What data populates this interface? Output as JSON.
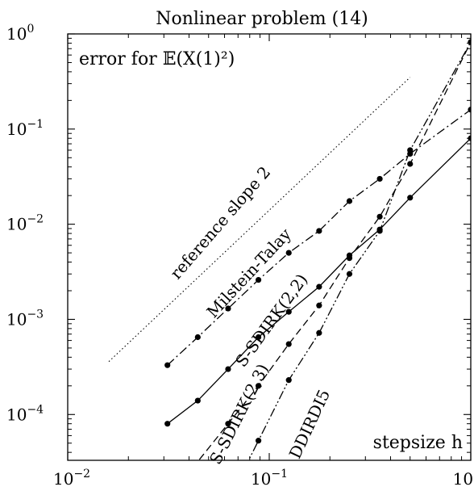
{
  "chart_data": {
    "type": "line",
    "title": "Nonlinear problem (14)",
    "corner_label_top": "error for 𝔼(X(1)²)",
    "corner_label_bottom": "stepsize h",
    "xscale": "log",
    "yscale": "log",
    "xlim": [
      0.01,
      1.0
    ],
    "ylim": [
      3.3e-05,
      1.0
    ],
    "x_ticks": [
      {
        "value": 0.01,
        "base": "10",
        "exp": "−2"
      },
      {
        "value": 0.1,
        "base": "10",
        "exp": "−1"
      },
      {
        "value": 1.0,
        "base": "10",
        "exp": "0"
      }
    ],
    "y_ticks": [
      {
        "value": 0.0001,
        "base": "10",
        "exp": "−4"
      },
      {
        "value": 0.001,
        "base": "10",
        "exp": "−3"
      },
      {
        "value": 0.01,
        "base": "10",
        "exp": "−2"
      },
      {
        "value": 0.1,
        "base": "10",
        "exp": "−1"
      },
      {
        "value": 1.0,
        "base": "10",
        "exp": "0"
      }
    ],
    "grid": false,
    "series": [
      {
        "name": "Milstein-Talay",
        "dash": "dashdot",
        "markers": true,
        "x": [
          0.03125,
          0.04419,
          0.0625,
          0.08839,
          0.125,
          0.17678,
          0.25,
          0.35355,
          0.5,
          1.0
        ],
        "y": [
          0.00033,
          0.00065,
          0.0013,
          0.0026,
          0.005,
          0.0085,
          0.0175,
          0.03,
          0.055,
          0.16
        ]
      },
      {
        "name": "S-SDIRK(2,2)",
        "dash": "solid",
        "markers": true,
        "x": [
          0.03125,
          0.04419,
          0.0625,
          0.08839,
          0.125,
          0.17678,
          0.25,
          0.35355,
          0.5,
          1.0
        ],
        "y": [
          8e-05,
          0.00014,
          0.0003,
          0.00065,
          0.0012,
          0.0022,
          0.0047,
          0.0088,
          0.019,
          0.08
        ]
      },
      {
        "name": "S-SDIRK(2,3)",
        "dash": "dashed",
        "markers": true,
        "x": [
          0.0625,
          0.08839,
          0.125,
          0.17678,
          0.25,
          0.35355,
          0.5,
          1.0
        ],
        "y": [
          8e-05,
          0.0002,
          0.00055,
          0.0014,
          0.0044,
          0.012,
          0.043,
          0.82
        ]
      },
      {
        "name": "DDIRDI5",
        "dash": "dashdotdot",
        "markers": true,
        "x": [
          0.08839,
          0.125,
          0.17678,
          0.25,
          0.35355,
          0.5,
          1.0
        ],
        "y": [
          5.31e-05,
          0.00023,
          0.00072,
          0.003,
          0.0085,
          0.06,
          0.82
        ]
      }
    ],
    "reference_line": {
      "label": "reference slope 2",
      "dash": "dotted",
      "x": [
        0.016,
        0.5
      ],
      "y": [
        0.00036,
        0.35
      ]
    },
    "series_labels": [
      {
        "text": "reference slope 2",
        "at_x": 0.06,
        "at_y": 0.0095,
        "angle_deg": -49
      },
      {
        "text": "Milstein-Talay",
        "at_x": 0.083,
        "at_y": 0.0028,
        "angle_deg": -47
      },
      {
        "text": "S-SDIRK(2,2)",
        "at_x": 0.108,
        "at_y": 0.0009,
        "angle_deg": -54
      },
      {
        "text": "S-SDIRK(2,3)",
        "at_x": 0.075,
        "at_y": 9.5e-05,
        "angle_deg": -63
      },
      {
        "text": "DDIRDI5",
        "at_x": 0.168,
        "at_y": 7.5e-05,
        "angle_deg": -65
      }
    ]
  }
}
